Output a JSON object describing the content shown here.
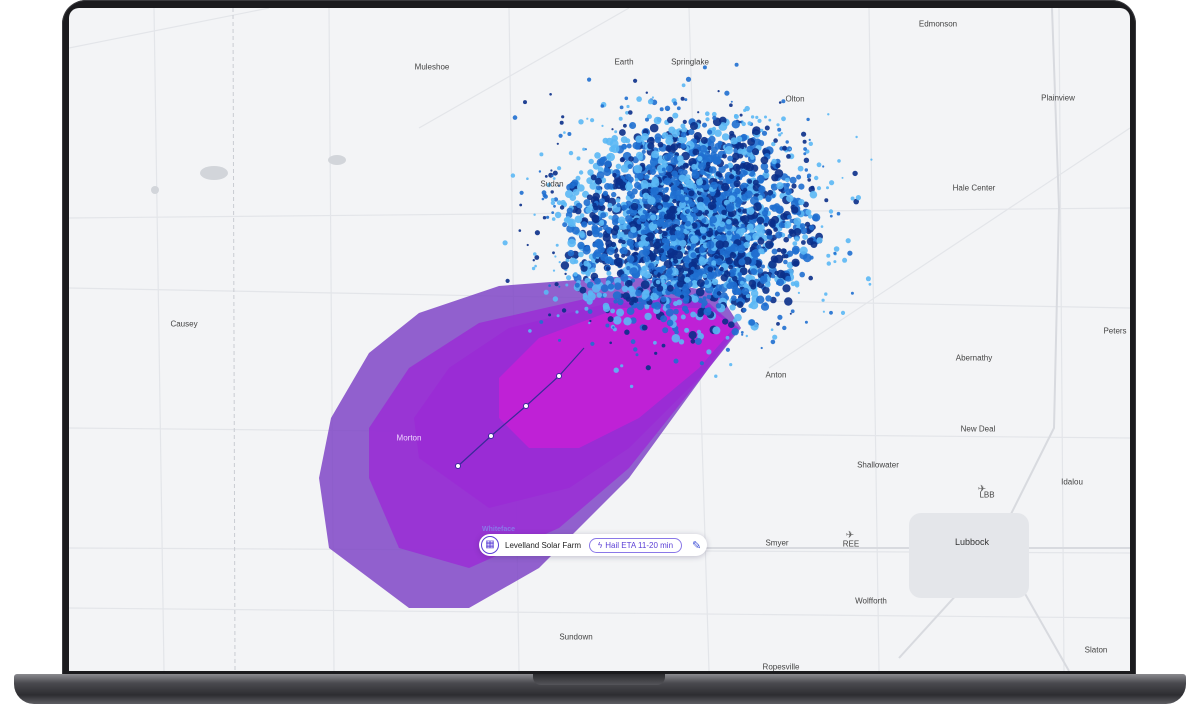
{
  "map": {
    "towns": [
      {
        "id": "edmonson",
        "label": "Edmonson"
      },
      {
        "id": "muleshoe",
        "label": "Muleshoe"
      },
      {
        "id": "earth",
        "label": "Earth"
      },
      {
        "id": "springlake",
        "label": "Springlake"
      },
      {
        "id": "olton",
        "label": "Olton"
      },
      {
        "id": "plainview",
        "label": "Plainview"
      },
      {
        "id": "sudan",
        "label": "Sudan"
      },
      {
        "id": "hale_center",
        "label": "Hale Center"
      },
      {
        "id": "causey",
        "label": "Causey"
      },
      {
        "id": "petersburg",
        "label": "Peters"
      },
      {
        "id": "abernathy",
        "label": "Abernathy"
      },
      {
        "id": "anton",
        "label": "Anton"
      },
      {
        "id": "morton",
        "label": "Morton"
      },
      {
        "id": "new_deal",
        "label": "New Deal"
      },
      {
        "id": "shallowater",
        "label": "Shallowater"
      },
      {
        "id": "idalou",
        "label": "Idalou"
      },
      {
        "id": "lbb",
        "label": "LBB"
      },
      {
        "id": "smyer",
        "label": "Smyer"
      },
      {
        "id": "ree",
        "label": "REE"
      },
      {
        "id": "lubbock",
        "label": "Lubbock"
      },
      {
        "id": "wolfforth",
        "label": "Wolfforth"
      },
      {
        "id": "sundown",
        "label": "Sundown"
      },
      {
        "id": "slaton",
        "label": "Slaton"
      },
      {
        "id": "ropesville",
        "label": "Ropesville"
      }
    ],
    "whiteface_label": "Whiteface"
  },
  "asset": {
    "name": "Levelland Solar Farm",
    "eta_label": "Hail ETA 11-20 min",
    "icon": "solar-panel-icon",
    "edit_icon": "edit-pencil-icon",
    "eta_icon": "hail-bolt-icon"
  },
  "colors": {
    "swath_outer": "#7b3fc4",
    "swath_mid": "#9b2ad6",
    "swath_inner": "#c81fd6",
    "hail_light": "#5bb8f5",
    "hail_mid": "#1f6fd0",
    "hail_dark": "#0a2f8a",
    "track": "#3a2a9a"
  }
}
